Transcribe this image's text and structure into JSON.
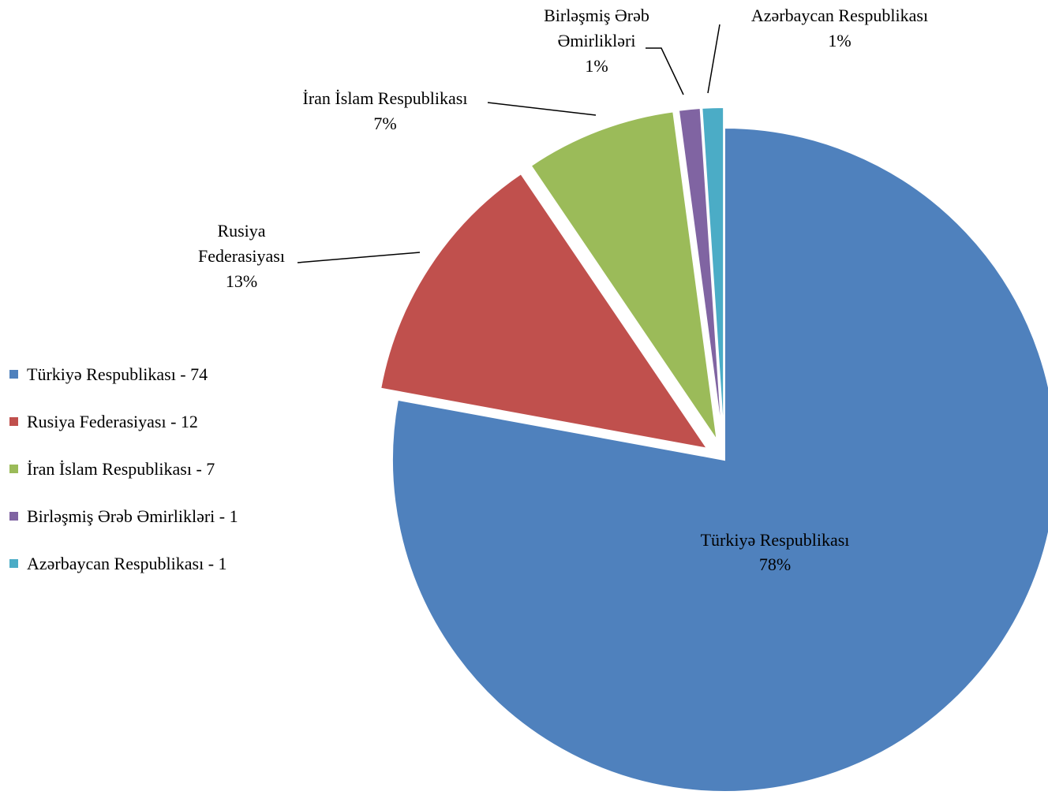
{
  "chart_data": {
    "type": "pie",
    "title": "",
    "slices": [
      {
        "name": "Türkiyə Respublikası",
        "value": 74,
        "percent_label": "78%",
        "legend_label": "Türkiyə  Respublikası  - 74",
        "label_lines": [
          "Türkiyə  Respublikası",
          "78%"
        ],
        "color": "#4F81BD"
      },
      {
        "name": "Rusiya Federasiyası",
        "value": 12,
        "percent_label": "13%",
        "legend_label": "Rusiya Federasiyası - 12",
        "label_lines": [
          "Rusiya",
          "Federasiyası",
          "13%"
        ],
        "color": "#C0504D"
      },
      {
        "name": "İran İslam Respublikası",
        "value": 7,
        "percent_label": "7%",
        "legend_label": "İran İslam Respublikası - 7",
        "label_lines": [
          "İran  İslam  Respublikası",
          "7%"
        ],
        "color": "#9BBB59"
      },
      {
        "name": "Birləşmiş Ərəb Əmirlikləri",
        "value": 1,
        "percent_label": "1%",
        "legend_label": "Birləşmiş  Ərəb Əmirlikləri  - 1",
        "label_lines": [
          "Birləşmiş  Ərəb",
          "Əmirlikləri",
          "1%"
        ],
        "color": "#8064A2"
      },
      {
        "name": "Azərbaycan Respublikası",
        "value": 1,
        "percent_label": "1%",
        "legend_label": "Azərbaycan  Respublikası  - 1",
        "label_lines": [
          "Azərbaycan  Respublikası",
          "1%"
        ],
        "color": "#4BACC6"
      }
    ],
    "legend_position": "left"
  }
}
